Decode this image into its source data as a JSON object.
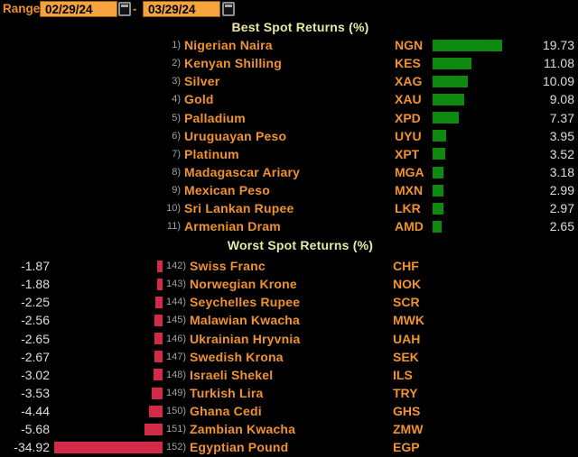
{
  "toolbar": {
    "range_label": "Range",
    "date_from": "02/29/24",
    "date_to": "03/29/24",
    "separator": "-"
  },
  "best": {
    "title": "Best Spot Returns (%)",
    "rows": [
      {
        "num": "1)",
        "name": "Nigerian Naira",
        "ticker": "NGN",
        "value": "19.73"
      },
      {
        "num": "2)",
        "name": "Kenyan Shilling",
        "ticker": "KES",
        "value": "11.08"
      },
      {
        "num": "3)",
        "name": "Silver",
        "ticker": "XAG",
        "value": "10.09"
      },
      {
        "num": "4)",
        "name": "Gold",
        "ticker": "XAU",
        "value": "9.08"
      },
      {
        "num": "5)",
        "name": "Palladium",
        "ticker": "XPD",
        "value": "7.37"
      },
      {
        "num": "6)",
        "name": "Uruguayan Peso",
        "ticker": "UYU",
        "value": "3.95"
      },
      {
        "num": "7)",
        "name": "Platinum",
        "ticker": "XPT",
        "value": "3.52"
      },
      {
        "num": "8)",
        "name": "Madagascar Ariary",
        "ticker": "MGA",
        "value": "3.18"
      },
      {
        "num": "9)",
        "name": "Mexican Peso",
        "ticker": "MXN",
        "value": "2.99"
      },
      {
        "num": "10)",
        "name": "Sri Lankan Rupee",
        "ticker": "LKR",
        "value": "2.97"
      },
      {
        "num": "11)",
        "name": "Armenian Dram",
        "ticker": "AMD",
        "value": "2.65"
      }
    ]
  },
  "worst": {
    "title": "Worst Spot Returns (%)",
    "rows": [
      {
        "num": "142)",
        "name": "Swiss Franc",
        "ticker": "CHF",
        "value": "-1.87"
      },
      {
        "num": "143)",
        "name": "Norwegian Krone",
        "ticker": "NOK",
        "value": "-1.88"
      },
      {
        "num": "144)",
        "name": "Seychelles Rupee",
        "ticker": "SCR",
        "value": "-2.25"
      },
      {
        "num": "145)",
        "name": "Malawian Kwacha",
        "ticker": "MWK",
        "value": "-2.56"
      },
      {
        "num": "146)",
        "name": "Ukrainian Hryvnia",
        "ticker": "UAH",
        "value": "-2.65"
      },
      {
        "num": "147)",
        "name": "Swedish Krona",
        "ticker": "SEK",
        "value": "-2.67"
      },
      {
        "num": "148)",
        "name": "Israeli Shekel",
        "ticker": "ILS",
        "value": "-3.02"
      },
      {
        "num": "149)",
        "name": "Turkish Lira",
        "ticker": "TRY",
        "value": "-3.53"
      },
      {
        "num": "150)",
        "name": "Ghana Cedi",
        "ticker": "GHS",
        "value": "-4.44"
      },
      {
        "num": "151)",
        "name": "Zambian Kwacha",
        "ticker": "ZMW",
        "value": "-5.68"
      },
      {
        "num": "152)",
        "name": "Egyptian Pound",
        "ticker": "EGP",
        "value": "-34.92"
      }
    ]
  },
  "colors": {
    "background": "#000000",
    "orange_text": "#f0922e",
    "date_field_orange": "#f6a33e",
    "title_yellow": "#e9e9a4",
    "positive_green": "#0f8a10",
    "negative_red": "#d22b4a",
    "value_white": "#dedede",
    "number_gray": "#a0a0a0"
  },
  "chart_data": [
    {
      "type": "bar",
      "orientation": "horizontal",
      "title": "Best Spot Returns (%)",
      "categories": [
        "Nigerian Naira",
        "Kenyan Shilling",
        "Silver",
        "Gold",
        "Palladium",
        "Uruguayan Peso",
        "Platinum",
        "Madagascar Ariary",
        "Mexican Peso",
        "Sri Lankan Rupee",
        "Armenian Dram"
      ],
      "tickers": [
        "NGN",
        "KES",
        "XAG",
        "XAU",
        "XPD",
        "UYU",
        "XPT",
        "MGA",
        "MXN",
        "LKR",
        "AMD"
      ],
      "values": [
        19.73,
        11.08,
        10.09,
        9.08,
        7.37,
        3.95,
        3.52,
        3.18,
        2.99,
        2.97,
        2.65
      ],
      "bar_color": "#0f8a10"
    },
    {
      "type": "bar",
      "orientation": "horizontal",
      "title": "Worst Spot Returns (%)",
      "categories": [
        "Swiss Franc",
        "Norwegian Krone",
        "Seychelles Rupee",
        "Malawian Kwacha",
        "Ukrainian Hryvnia",
        "Swedish Krona",
        "Israeli Shekel",
        "Turkish Lira",
        "Ghana Cedi",
        "Zambian Kwacha",
        "Egyptian Pound"
      ],
      "tickers": [
        "CHF",
        "NOK",
        "SCR",
        "MWK",
        "UAH",
        "SEK",
        "ILS",
        "TRY",
        "GHS",
        "ZMW",
        "EGP"
      ],
      "values": [
        -1.87,
        -1.88,
        -2.25,
        -2.56,
        -2.65,
        -2.67,
        -3.02,
        -3.53,
        -4.44,
        -5.68,
        -34.92
      ],
      "bar_color": "#d22b4a"
    }
  ]
}
